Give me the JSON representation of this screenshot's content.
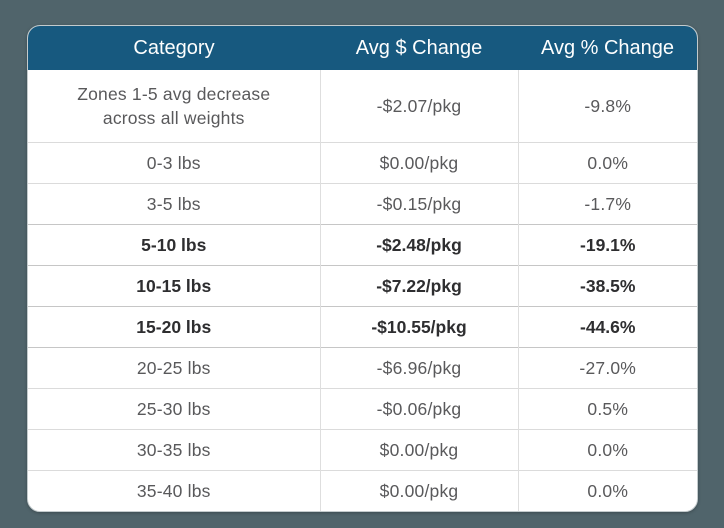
{
  "page": {
    "background_color": "#50646B",
    "card_color": "#FFFFFF"
  },
  "chart_data": {
    "type": "table",
    "title": "",
    "columns": [
      "Category",
      "Avg $ Change",
      "Avg % Change"
    ],
    "header_bg_color": "#17597F",
    "header_text_color": "#FFFFFF",
    "rows": [
      {
        "category": "Zones 1-5 avg decrease across all weights",
        "dollar": "-$2.07/pkg",
        "percent": "-9.8%",
        "dollar_value": -2.07,
        "percent_value": -9.8,
        "bold": false,
        "tall": true
      },
      {
        "category": "0-3 lbs",
        "dollar": "$0.00/pkg",
        "percent": "0.0%",
        "dollar_value": 0.0,
        "percent_value": 0.0,
        "bold": false,
        "tall": false
      },
      {
        "category": "3-5 lbs",
        "dollar": "-$0.15/pkg",
        "percent": "-1.7%",
        "dollar_value": -0.15,
        "percent_value": -1.7,
        "bold": false,
        "tall": false
      },
      {
        "category": "5-10 lbs",
        "dollar": "-$2.48/pkg",
        "percent": "-19.1%",
        "dollar_value": -2.48,
        "percent_value": -19.1,
        "bold": true,
        "tall": false
      },
      {
        "category": "10-15 lbs",
        "dollar": "-$7.22/pkg",
        "percent": "-38.5%",
        "dollar_value": -7.22,
        "percent_value": -38.5,
        "bold": true,
        "tall": false
      },
      {
        "category": "15-20 lbs",
        "dollar": "-$10.55/pkg",
        "percent": "-44.6%",
        "dollar_value": -10.55,
        "percent_value": -44.6,
        "bold": true,
        "tall": false
      },
      {
        "category": "20-25 lbs",
        "dollar": "-$6.96/pkg",
        "percent": "-27.0%",
        "dollar_value": -6.96,
        "percent_value": -27.0,
        "bold": false,
        "tall": false
      },
      {
        "category": "25-30 lbs",
        "dollar": "-$0.06/pkg",
        "percent": "0.5%",
        "dollar_value": -0.06,
        "percent_value": 0.5,
        "bold": false,
        "tall": false
      },
      {
        "category": "30-35 lbs",
        "dollar": "$0.00/pkg",
        "percent": "0.0%",
        "dollar_value": 0.0,
        "percent_value": 0.0,
        "bold": false,
        "tall": false
      },
      {
        "category": "35-40 lbs",
        "dollar": "$0.00/pkg",
        "percent": "0.0%",
        "dollar_value": 0.0,
        "percent_value": 0.0,
        "bold": false,
        "tall": false
      }
    ],
    "bold_rows": [
      "5-10 lbs",
      "10-15 lbs",
      "15-20 lbs"
    ],
    "layout": {
      "grid": "horizontal-and-vertical-separators",
      "legend_position": "none"
    }
  }
}
